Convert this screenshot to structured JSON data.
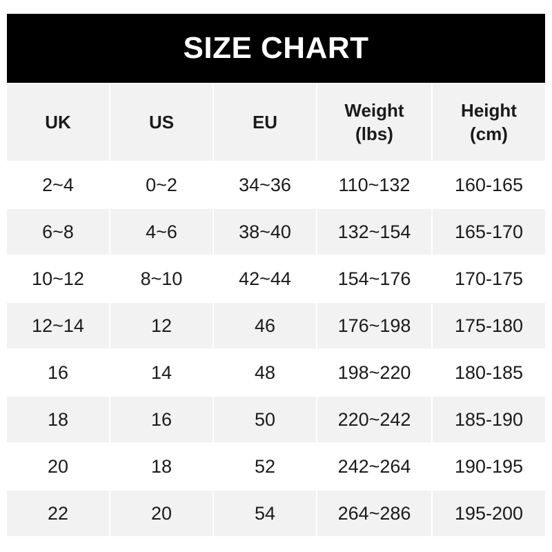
{
  "title": "SIZE CHART",
  "headers": [
    "UK",
    "US",
    "EU",
    "Weight\n(lbs)",
    "Height\n(cm)"
  ],
  "rows": [
    [
      "2~4",
      "0~2",
      "34~36",
      "110~132",
      "160-165"
    ],
    [
      "6~8",
      "4~6",
      "38~40",
      "132~154",
      "165-170"
    ],
    [
      "10~12",
      "8~10",
      "42~44",
      "154~176",
      "170-175"
    ],
    [
      "12~14",
      "12",
      "46",
      "176~198",
      "175-180"
    ],
    [
      "16",
      "14",
      "48",
      "198~220",
      "180-185"
    ],
    [
      "18",
      "16",
      "50",
      "220~242",
      "185-190"
    ],
    [
      "20",
      "18",
      "52",
      "242~264",
      "190-195"
    ],
    [
      "22",
      "20",
      "54",
      "264~286",
      "195-200"
    ]
  ],
  "colors": {
    "banner": "#000000",
    "stripe": "#f2f2f2"
  }
}
